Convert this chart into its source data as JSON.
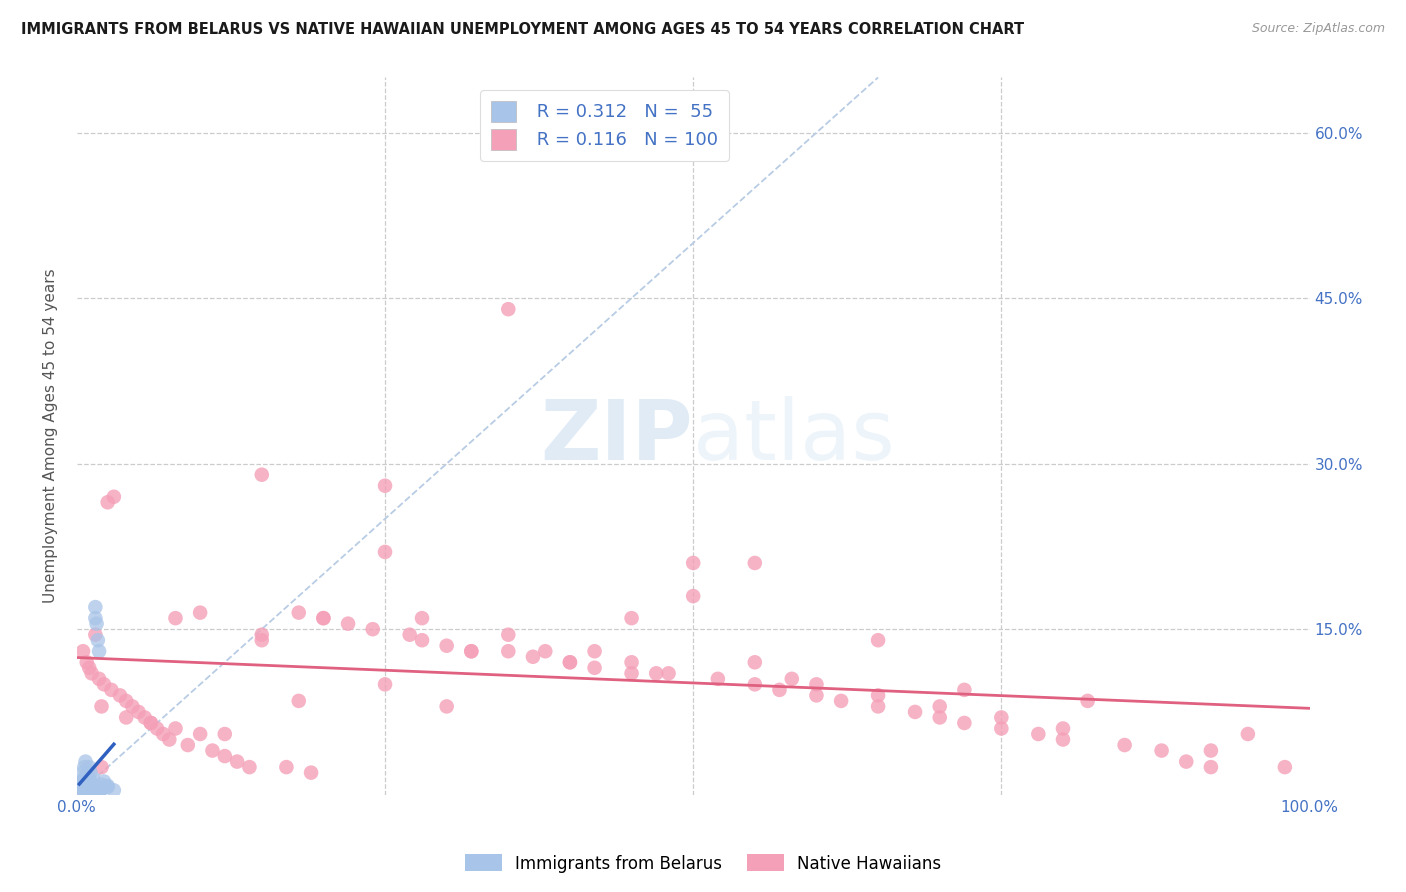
{
  "title": "IMMIGRANTS FROM BELARUS VS NATIVE HAWAIIAN UNEMPLOYMENT AMONG AGES 45 TO 54 YEARS CORRELATION CHART",
  "source": "Source: ZipAtlas.com",
  "ylabel": "Unemployment Among Ages 45 to 54 years",
  "xlim": [
    0.0,
    1.0
  ],
  "ylim": [
    0.0,
    0.65
  ],
  "ytick_vals": [
    0.0,
    0.15,
    0.3,
    0.45,
    0.6
  ],
  "ytick_labels": [
    "",
    "15.0%",
    "30.0%",
    "45.0%",
    "60.0%"
  ],
  "xtick_vals": [
    0.0,
    1.0
  ],
  "xtick_labels": [
    "0.0%",
    "100.0%"
  ],
  "legend_r_blue": "0.312",
  "legend_n_blue": "55",
  "legend_r_pink": "0.116",
  "legend_n_pink": "100",
  "blue_color": "#a8c4e8",
  "pink_color": "#f4a0b8",
  "blue_line_color": "#3060c0",
  "pink_line_color": "#e06080",
  "diag_color": "#b8cce4",
  "watermark_zip": "ZIP",
  "watermark_atlas": "atlas",
  "blue_scatter_x": [
    0.002,
    0.003,
    0.003,
    0.004,
    0.004,
    0.005,
    0.005,
    0.005,
    0.006,
    0.006,
    0.006,
    0.007,
    0.007,
    0.007,
    0.008,
    0.008,
    0.008,
    0.009,
    0.009,
    0.01,
    0.01,
    0.01,
    0.011,
    0.011,
    0.012,
    0.012,
    0.013,
    0.013,
    0.014,
    0.015,
    0.015,
    0.016,
    0.017,
    0.018,
    0.019,
    0.02,
    0.021,
    0.022,
    0.023,
    0.025,
    0.003,
    0.004,
    0.005,
    0.006,
    0.007,
    0.008,
    0.009,
    0.01,
    0.012,
    0.014,
    0.016,
    0.018,
    0.02,
    0.025,
    0.03
  ],
  "blue_scatter_y": [
    0.01,
    0.005,
    0.008,
    0.003,
    0.012,
    0.005,
    0.02,
    0.007,
    0.003,
    0.015,
    0.025,
    0.004,
    0.01,
    0.03,
    0.006,
    0.012,
    0.018,
    0.004,
    0.008,
    0.005,
    0.015,
    0.025,
    0.007,
    0.02,
    0.005,
    0.01,
    0.008,
    0.015,
    0.006,
    0.16,
    0.17,
    0.155,
    0.14,
    0.13,
    0.005,
    0.009,
    0.006,
    0.012,
    0.007,
    0.008,
    0.004,
    0.003,
    0.006,
    0.004,
    0.005,
    0.007,
    0.003,
    0.008,
    0.005,
    0.006,
    0.004,
    0.003,
    0.005,
    0.007,
    0.004
  ],
  "pink_scatter_x": [
    0.005,
    0.008,
    0.01,
    0.012,
    0.015,
    0.018,
    0.02,
    0.022,
    0.025,
    0.028,
    0.03,
    0.035,
    0.04,
    0.045,
    0.05,
    0.055,
    0.06,
    0.065,
    0.07,
    0.075,
    0.08,
    0.09,
    0.1,
    0.11,
    0.12,
    0.13,
    0.14,
    0.15,
    0.17,
    0.18,
    0.19,
    0.2,
    0.22,
    0.24,
    0.25,
    0.27,
    0.28,
    0.3,
    0.32,
    0.35,
    0.37,
    0.4,
    0.42,
    0.45,
    0.47,
    0.5,
    0.52,
    0.55,
    0.57,
    0.6,
    0.62,
    0.65,
    0.68,
    0.7,
    0.72,
    0.75,
    0.78,
    0.8,
    0.85,
    0.88,
    0.9,
    0.92,
    0.95,
    0.98,
    0.02,
    0.04,
    0.06,
    0.08,
    0.1,
    0.12,
    0.15,
    0.2,
    0.25,
    0.3,
    0.35,
    0.4,
    0.45,
    0.5,
    0.55,
    0.6,
    0.65,
    0.7,
    0.75,
    0.8,
    0.35,
    0.55,
    0.65,
    0.38,
    0.48,
    0.32,
    0.18,
    0.28,
    0.42,
    0.58,
    0.72,
    0.82,
    0.92,
    0.15,
    0.25,
    0.45
  ],
  "pink_scatter_y": [
    0.13,
    0.12,
    0.115,
    0.11,
    0.145,
    0.105,
    0.025,
    0.1,
    0.265,
    0.095,
    0.27,
    0.09,
    0.085,
    0.08,
    0.075,
    0.07,
    0.065,
    0.06,
    0.055,
    0.05,
    0.16,
    0.045,
    0.165,
    0.04,
    0.035,
    0.03,
    0.025,
    0.29,
    0.025,
    0.165,
    0.02,
    0.16,
    0.155,
    0.15,
    0.28,
    0.145,
    0.14,
    0.135,
    0.13,
    0.13,
    0.125,
    0.12,
    0.115,
    0.11,
    0.11,
    0.21,
    0.105,
    0.1,
    0.095,
    0.09,
    0.085,
    0.08,
    0.075,
    0.07,
    0.065,
    0.06,
    0.055,
    0.05,
    0.045,
    0.04,
    0.03,
    0.025,
    0.055,
    0.025,
    0.08,
    0.07,
    0.065,
    0.06,
    0.055,
    0.055,
    0.14,
    0.16,
    0.22,
    0.08,
    0.145,
    0.12,
    0.16,
    0.18,
    0.12,
    0.1,
    0.09,
    0.08,
    0.07,
    0.06,
    0.44,
    0.21,
    0.14,
    0.13,
    0.11,
    0.13,
    0.085,
    0.16,
    0.13,
    0.105,
    0.095,
    0.085,
    0.04,
    0.145,
    0.1,
    0.12
  ]
}
